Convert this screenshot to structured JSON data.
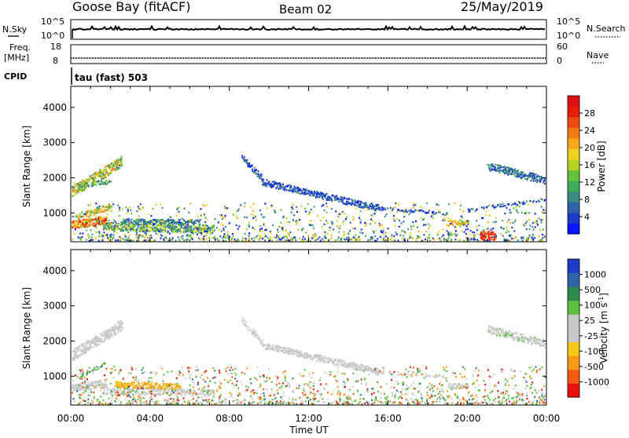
{
  "header": {
    "station": "Goose Bay (fitACF)",
    "beam": "Beam 02",
    "date": "25/May/2019"
  },
  "top_panels": {
    "nsky_label": "N.Sky",
    "nsky_top": "10^5",
    "nsky_bottom": "10^0",
    "nsearch_label": "N.Search",
    "nsearch_top": "10^5",
    "nsearch_bottom": "10^0",
    "freq_label": "Freq.",
    "freq_unit": "[MHz]",
    "freq_top": "18",
    "freq_bottom": "8",
    "nave_label": "Nave",
    "nave_top": "60",
    "nave_bottom": "0",
    "cpid_label": "CPID",
    "cpid_text": "tau (fast) 503"
  },
  "chart_data": [
    {
      "type": "heatmap",
      "name": "power",
      "ylabel": "Slant Range [km]",
      "yticks": [
        1000,
        2000,
        3000,
        4000
      ],
      "ylim": [
        180,
        4600
      ],
      "colorbar_label": "Power [dB]",
      "colorbar_ticks": [
        "4",
        "8",
        "12",
        "16",
        "20",
        "24",
        "28"
      ],
      "colorbar_colors": [
        "#0a14ff",
        "#1e3cc8",
        "#2f64a8",
        "#3a8a82",
        "#3fae5a",
        "#62c23c",
        "#b8d224",
        "#f0d21e",
        "#f8a818",
        "#f47a12",
        "#ee4c0e",
        "#e81e0a",
        "#e01010"
      ]
    },
    {
      "type": "heatmap",
      "name": "velocity",
      "ylabel": "Slant Range [km]",
      "yticks": [
        1000,
        2000,
        3000,
        4000
      ],
      "ylim": [
        180,
        4600
      ],
      "colorbar_label": "Velocity [m s",
      "colorbar_label_sup": "-1",
      "colorbar_label_end": "]",
      "colorbar_ticks": [
        "-1000",
        "-500",
        "-100",
        "-25",
        "25",
        "100",
        "500",
        "1000"
      ],
      "colorbar_colors": [
        "#e81010",
        "#f45a10",
        "#f89a14",
        "#f8c818",
        "#c8c8c8",
        "#c8c8c8",
        "#5cc03c",
        "#2f8a50",
        "#2f64a8",
        "#1e3cc8"
      ]
    }
  ],
  "x_axis": {
    "ticks": [
      "00:00",
      "04:00",
      "08:00",
      "12:00",
      "16:00",
      "20:00",
      "00:00"
    ],
    "hours": [
      0,
      4,
      8,
      12,
      16,
      20,
      24
    ],
    "label": "Time UT"
  }
}
